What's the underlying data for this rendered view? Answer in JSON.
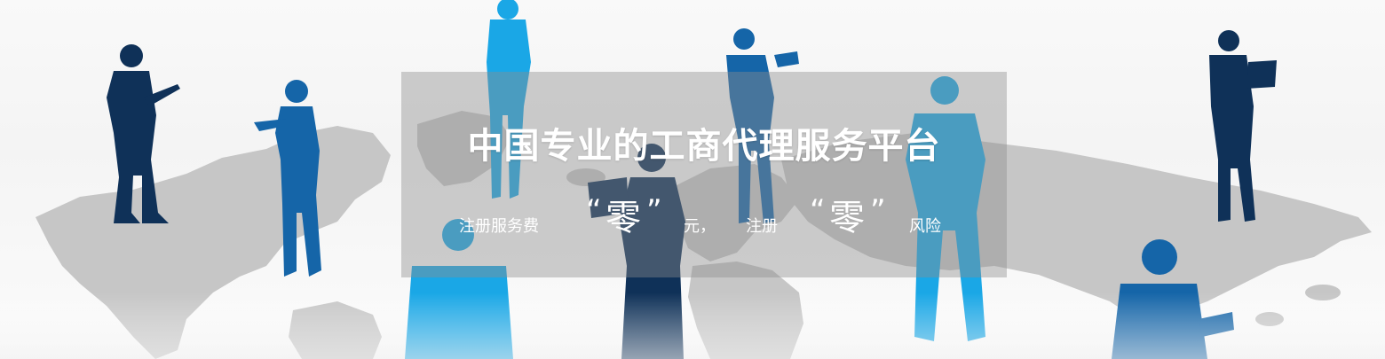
{
  "banner": {
    "headline": "中国专业的工商代理服务平台",
    "subline": {
      "part1": "注册服务费",
      "emphasis1": "零",
      "part2": "元，",
      "part3": "注册",
      "emphasis2": "零",
      "part4": "风险",
      "open_quote": "“",
      "close_quote": "”"
    }
  },
  "colors": {
    "dark_navy": "#0f3158",
    "mid_blue": "#1565a8",
    "bright_blue": "#1aa7e6",
    "map_gray": "#c9c9c9",
    "overlay": "#8c8c8c"
  }
}
